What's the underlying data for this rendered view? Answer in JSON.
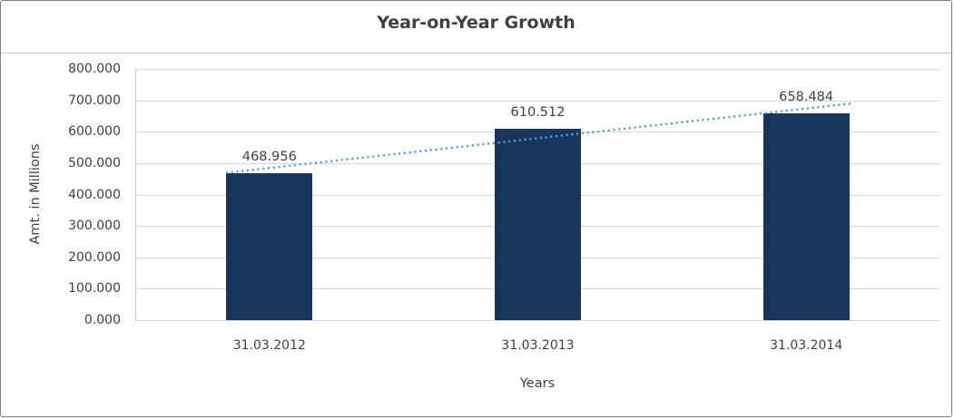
{
  "chart_data": {
    "type": "bar",
    "title": "Year-on-Year Growth",
    "xlabel": "Years",
    "ylabel": "Amt. in Millions",
    "categories": [
      "31.03.2012",
      "31.03.2013",
      "31.03.2014"
    ],
    "values": [
      468.956,
      610.512,
      658.484
    ],
    "value_labels": [
      "468.956",
      "610.512",
      "658.484"
    ],
    "ylim": [
      0,
      800
    ],
    "ytick_step": 100,
    "ytick_labels": [
      "0.000",
      "100.000",
      "200.000",
      "300.000",
      "400.000",
      "500.000",
      "600.000",
      "700.000",
      "800.000"
    ],
    "grid": true,
    "legend": "none",
    "trendline": true,
    "trendline_style": "dotted",
    "colors": {
      "bar": "#16365C",
      "trendline": "#5B9BD5",
      "gridline": "#D9D9D9",
      "axis_line": "#C6C6C6",
      "title_divider": "#BFBFBF",
      "frame_border": "#7F7F7F",
      "text": "#404040"
    }
  }
}
